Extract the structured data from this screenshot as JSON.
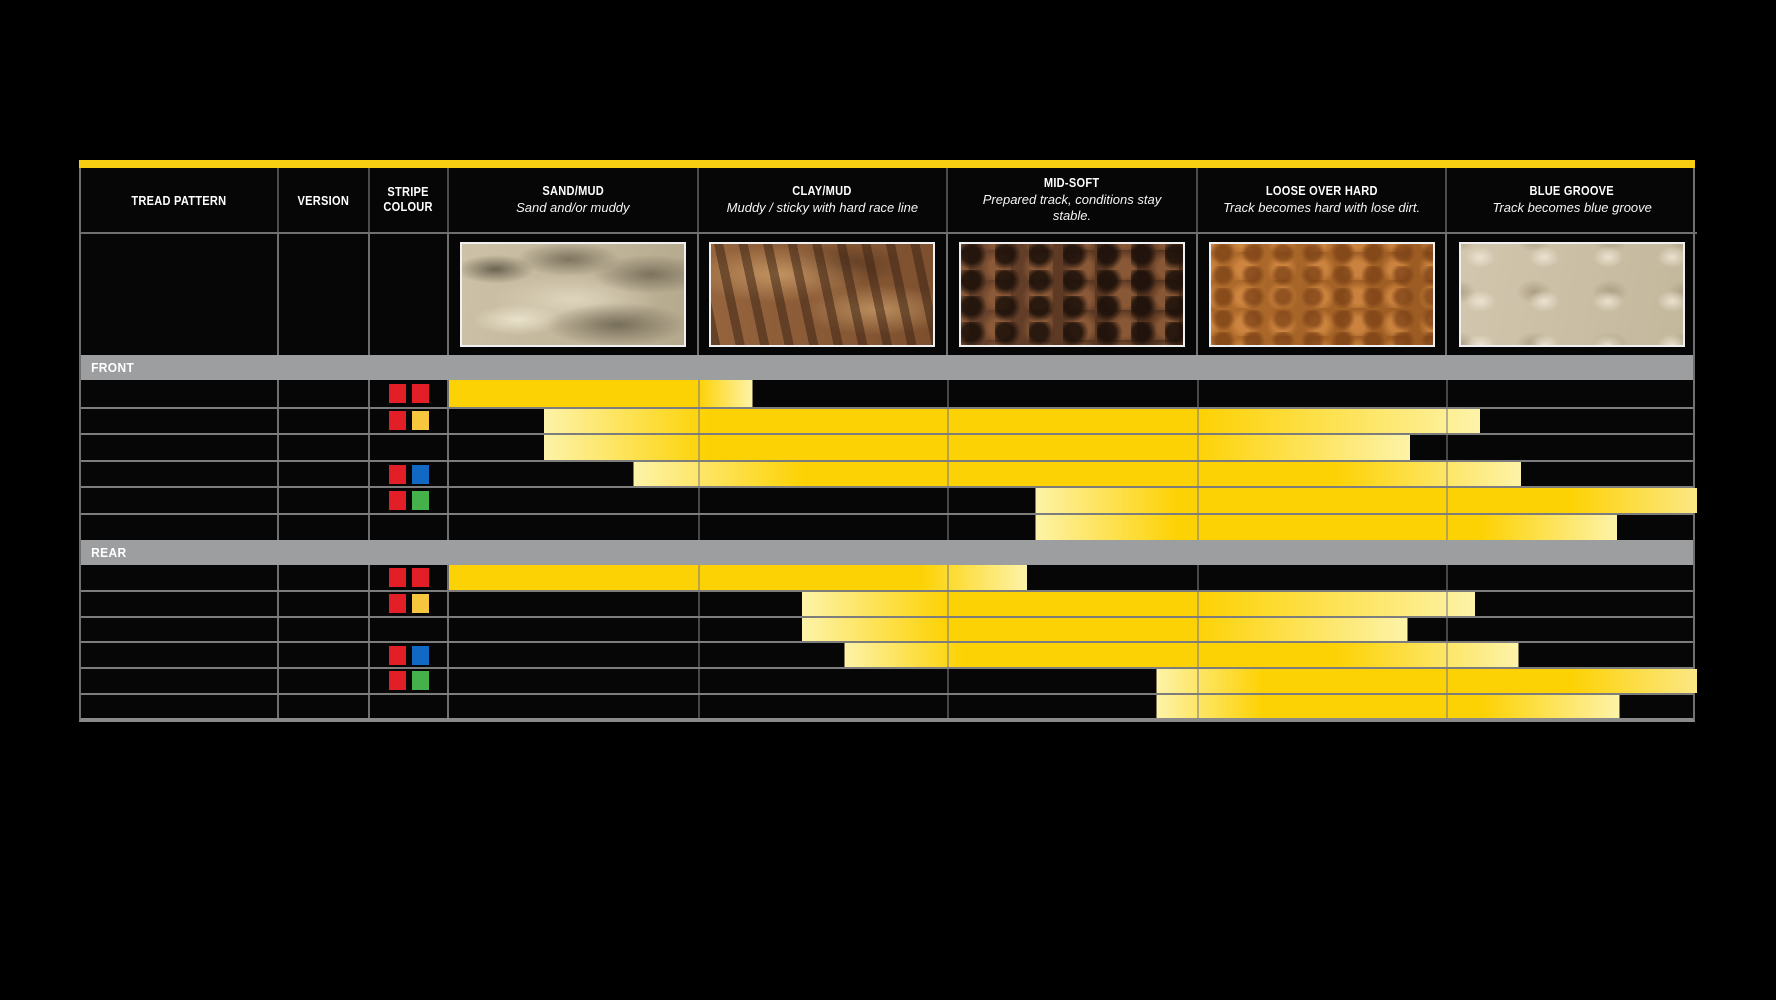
{
  "page": {
    "background": "#000000"
  },
  "table": {
    "accent_color": "#f8ce12",
    "bar_colors": {
      "solid": "#fdd205",
      "light": "#fdf3a8",
      "edge": "#fce784"
    },
    "stripe_palette": {
      "red": "#e21f26",
      "yellow": "#f7c63f",
      "blue": "#1169c4",
      "green": "#45b14a"
    },
    "columns": [
      {
        "key": "tread_pattern",
        "title": "TREAD PATTERN",
        "subtitle": "",
        "photo": ""
      },
      {
        "key": "version",
        "title": "VERSION",
        "subtitle": "",
        "photo": ""
      },
      {
        "key": "stripe_colour",
        "title": "STRIPE COLOUR",
        "subtitle": "",
        "photo": ""
      },
      {
        "key": "sand_mud",
        "title": "SAND/MUD",
        "subtitle": "Sand and/or muddy",
        "photo": "sand-mud-photo"
      },
      {
        "key": "clay_mud",
        "title": "CLAY/MUD",
        "subtitle": "Muddy / sticky with hard race line",
        "photo": "clay-mud-photo"
      },
      {
        "key": "mid_soft",
        "title": "MID-SOFT",
        "subtitle": "Prepared track, conditions stay stable.",
        "photo": "mid-soft-photo"
      },
      {
        "key": "loose_over_hard",
        "title": "LOOSE OVER HARD",
        "subtitle": "Track becomes hard with lose dirt.",
        "photo": "loose-over-hard-photo"
      },
      {
        "key": "blue_groove",
        "title": "BLUE GROOVE",
        "subtitle": "Track becomes blue groove",
        "photo": "blue-groove-photo"
      }
    ],
    "sections": [
      {
        "label": "FRONT",
        "rows": [
          {
            "stripes": [
              "red",
              "red"
            ],
            "bar": {
              "start": 0,
              "solid_start": 0,
              "solid_end": 20.0,
              "end": 24.3
            }
          },
          {
            "stripes": [
              "red",
              "yellow"
            ],
            "bar": {
              "start": 7.6,
              "solid_start": 20.7,
              "solid_end": 60.3,
              "end": 82.6
            }
          },
          {
            "stripes": [],
            "bar": {
              "start": 7.6,
              "solid_start": 20.7,
              "solid_end": 59.9,
              "end": 77.0
            }
          },
          {
            "stripes": [
              "red",
              "blue"
            ],
            "bar": {
              "start": 14.8,
              "solid_start": 28.4,
              "solid_end": 71.1,
              "end": 85.9
            }
          },
          {
            "stripes": [
              "red",
              "green"
            ],
            "bar": {
              "start": 47.0,
              "solid_start": 58.3,
              "solid_end": 89.9,
              "end": 100
            }
          },
          {
            "stripes": [],
            "bar": {
              "start": 47.0,
              "solid_start": 58.3,
              "solid_end": 82.8,
              "end": 93.6
            }
          }
        ]
      },
      {
        "label": "REAR",
        "rows": [
          {
            "stripes": [
              "red",
              "red"
            ],
            "bar": {
              "start": 0,
              "solid_start": 0,
              "solid_end": 37.9,
              "end": 46.3
            }
          },
          {
            "stripes": [
              "red",
              "yellow"
            ],
            "bar": {
              "start": 28.3,
              "solid_start": 39.9,
              "solid_end": 60.3,
              "end": 82.2
            }
          },
          {
            "stripes": [],
            "bar": {
              "start": 28.3,
              "solid_start": 39.9,
              "solid_end": 59.9,
              "end": 76.8
            }
          },
          {
            "stripes": [
              "red",
              "blue"
            ],
            "bar": {
              "start": 31.7,
              "solid_start": 41.1,
              "solid_end": 71.1,
              "end": 85.7
            }
          },
          {
            "stripes": [
              "red",
              "green"
            ],
            "bar": {
              "start": 56.7,
              "solid_start": 65.1,
              "solid_end": 90.0,
              "end": 100
            }
          },
          {
            "stripes": [],
            "bar": {
              "start": 56.7,
              "solid_start": 65.1,
              "solid_end": 82.8,
              "end": 93.8
            }
          }
        ]
      }
    ]
  },
  "chart_data": {
    "type": "range-bar",
    "categories": [
      "SAND/MUD",
      "CLAY/MUD",
      "MID-SOFT",
      "LOOSE OVER HARD",
      "BLUE GROOVE"
    ],
    "x_unit": "track condition columns (0-5)",
    "legend_position": "none",
    "series": [
      {
        "group": "FRONT",
        "row": 1,
        "stripes": [
          "red",
          "red"
        ],
        "range": [
          0,
          1.22
        ],
        "solid_range": [
          0,
          1.0
        ]
      },
      {
        "group": "FRONT",
        "row": 2,
        "stripes": [
          "red",
          "yellow"
        ],
        "range": [
          0.38,
          4.13
        ],
        "solid_range": [
          1.03,
          3.02
        ]
      },
      {
        "group": "FRONT",
        "row": 3,
        "stripes": [],
        "range": [
          0.38,
          3.85
        ],
        "solid_range": [
          1.03,
          3.0
        ]
      },
      {
        "group": "FRONT",
        "row": 4,
        "stripes": [
          "red",
          "blue"
        ],
        "range": [
          0.74,
          4.3
        ],
        "solid_range": [
          1.42,
          3.55
        ]
      },
      {
        "group": "FRONT",
        "row": 5,
        "stripes": [
          "red",
          "green"
        ],
        "range": [
          2.35,
          5.0
        ],
        "solid_range": [
          2.92,
          4.5
        ]
      },
      {
        "group": "FRONT",
        "row": 6,
        "stripes": [],
        "range": [
          2.35,
          4.68
        ],
        "solid_range": [
          2.92,
          4.14
        ]
      },
      {
        "group": "REAR",
        "row": 1,
        "stripes": [
          "red",
          "red"
        ],
        "range": [
          0,
          2.32
        ],
        "solid_range": [
          0,
          1.9
        ]
      },
      {
        "group": "REAR",
        "row": 2,
        "stripes": [
          "red",
          "yellow"
        ],
        "range": [
          1.42,
          4.11
        ],
        "solid_range": [
          2.0,
          3.02
        ]
      },
      {
        "group": "REAR",
        "row": 3,
        "stripes": [],
        "range": [
          1.42,
          3.84
        ],
        "solid_range": [
          2.0,
          3.0
        ]
      },
      {
        "group": "REAR",
        "row": 4,
        "stripes": [
          "red",
          "blue"
        ],
        "range": [
          1.59,
          4.29
        ],
        "solid_range": [
          2.06,
          3.55
        ]
      },
      {
        "group": "REAR",
        "row": 5,
        "stripes": [
          "red",
          "green"
        ],
        "range": [
          2.84,
          5.0
        ],
        "solid_range": [
          3.26,
          4.5
        ]
      },
      {
        "group": "REAR",
        "row": 6,
        "stripes": [],
        "range": [
          2.84,
          4.69
        ],
        "solid_range": [
          3.26,
          4.14
        ]
      }
    ]
  }
}
